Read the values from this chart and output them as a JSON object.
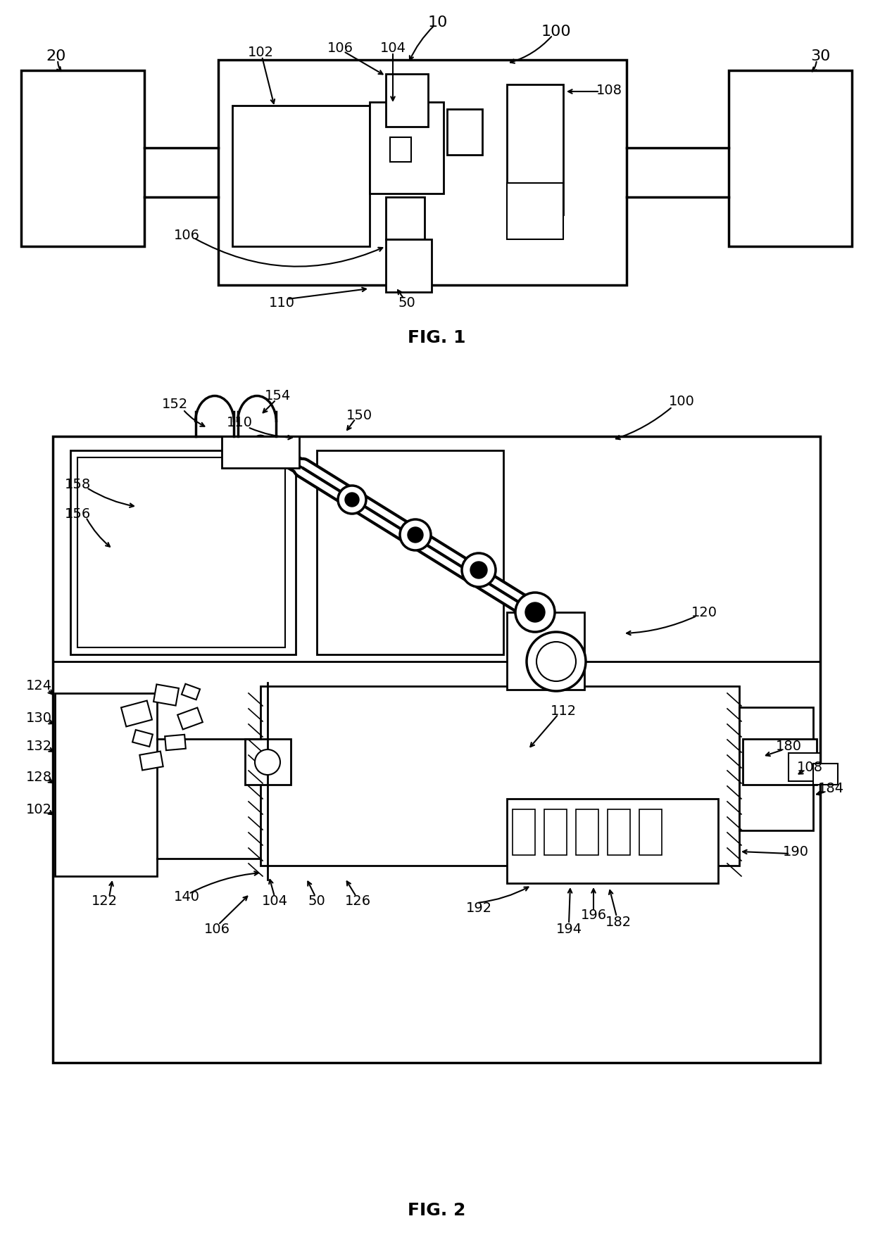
{
  "bg_color": "#ffffff",
  "line_color": "#000000",
  "fig_width": 12.4,
  "fig_height": 17.62,
  "dpi": 100
}
